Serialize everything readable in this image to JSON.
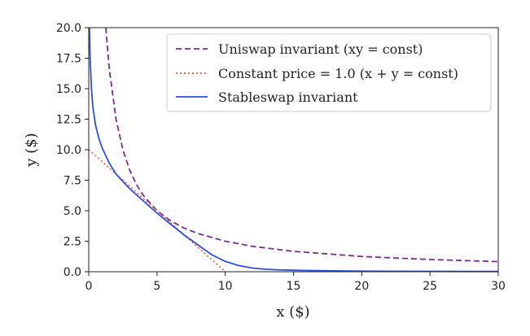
{
  "chart_data": {
    "type": "line",
    "xlabel": "x ($)",
    "ylabel": "y ($)",
    "xlim": [
      0,
      30
    ],
    "ylim": [
      0,
      20
    ],
    "xticks": [
      "0",
      "5",
      "10",
      "15",
      "20",
      "25",
      "30"
    ],
    "yticks": [
      "0.0",
      "2.5",
      "5.0",
      "7.5",
      "10.0",
      "12.5",
      "15.0",
      "17.5",
      "20.0"
    ],
    "grid": false,
    "legend_position": "top-right",
    "series": [
      {
        "name": "Uniswap invariant (xy = const)",
        "color": "#7b2d8e",
        "style": "dashed",
        "x": [
          1.25,
          1.5,
          2,
          2.5,
          3,
          3.5,
          4,
          5,
          6,
          7,
          8,
          10,
          12,
          15,
          20,
          25,
          30
        ],
        "y": [
          20.0,
          16.67,
          12.5,
          10.0,
          8.33,
          7.14,
          6.25,
          5.0,
          4.17,
          3.57,
          3.13,
          2.5,
          2.08,
          1.67,
          1.25,
          1.0,
          0.83
        ]
      },
      {
        "name": "Constant price = 1.0 (x + y = const)",
        "color": "#e8573a",
        "style": "dotted",
        "x": [
          0,
          10
        ],
        "y": [
          10,
          0
        ]
      },
      {
        "name": "Stableswap invariant",
        "color": "#2f4fd6",
        "style": "solid",
        "x": [
          0.05,
          0.1,
          0.2,
          0.3,
          0.5,
          0.75,
          1.0,
          1.5,
          2.0,
          3.0,
          4.0,
          5.0,
          6.0,
          7.0,
          8.0,
          9.0,
          10.0,
          11.0,
          12.0,
          13.0,
          14.0,
          15.0,
          16.0,
          18.0,
          20.0,
          22.0,
          25.0,
          28.0,
          30.0
        ],
        "y": [
          20.0,
          17.5,
          15.0,
          13.5,
          12.0,
          10.9,
          10.1,
          8.9,
          8.0,
          6.8,
          5.8,
          4.8,
          3.9,
          3.0,
          2.2,
          1.4,
          0.85,
          0.5,
          0.3,
          0.2,
          0.15,
          0.12,
          0.1,
          0.07,
          0.05,
          0.04,
          0.03,
          0.02,
          0.02
        ]
      }
    ]
  }
}
